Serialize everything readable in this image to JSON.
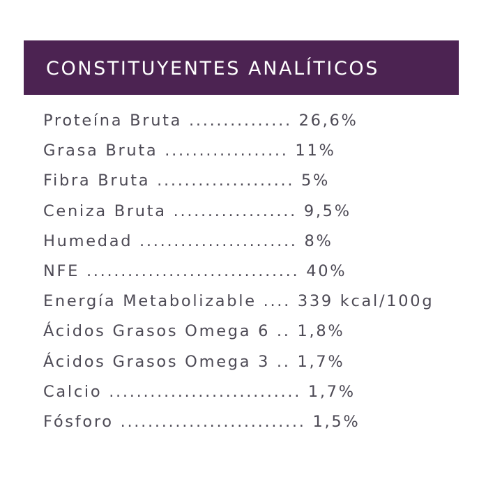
{
  "header": {
    "title": "CONSTITUYENTES ANALÍTICOS"
  },
  "rows": [
    "Proteína Bruta ............... 26,6%",
    "Grasa Bruta .................. 11%",
    "Fibra Bruta .................... 5%",
    "Ceniza Bruta .................. 9,5%",
    "Humedad ....................... 8%",
    "NFE ............................... 40%",
    "Energía Metabolizable .... 339 kcal/100g",
    "Ácidos Grasos Omega 6 .. 1,8%",
    "Ácidos Grasos Omega 3 .. 1,7%",
    "Calcio ............................ 1,7%",
    "Fósforo ........................... 1,5%"
  ],
  "colors": {
    "header_background": "#4c2352",
    "header_text": "#ffffff",
    "body_text": "#4d4a55"
  }
}
